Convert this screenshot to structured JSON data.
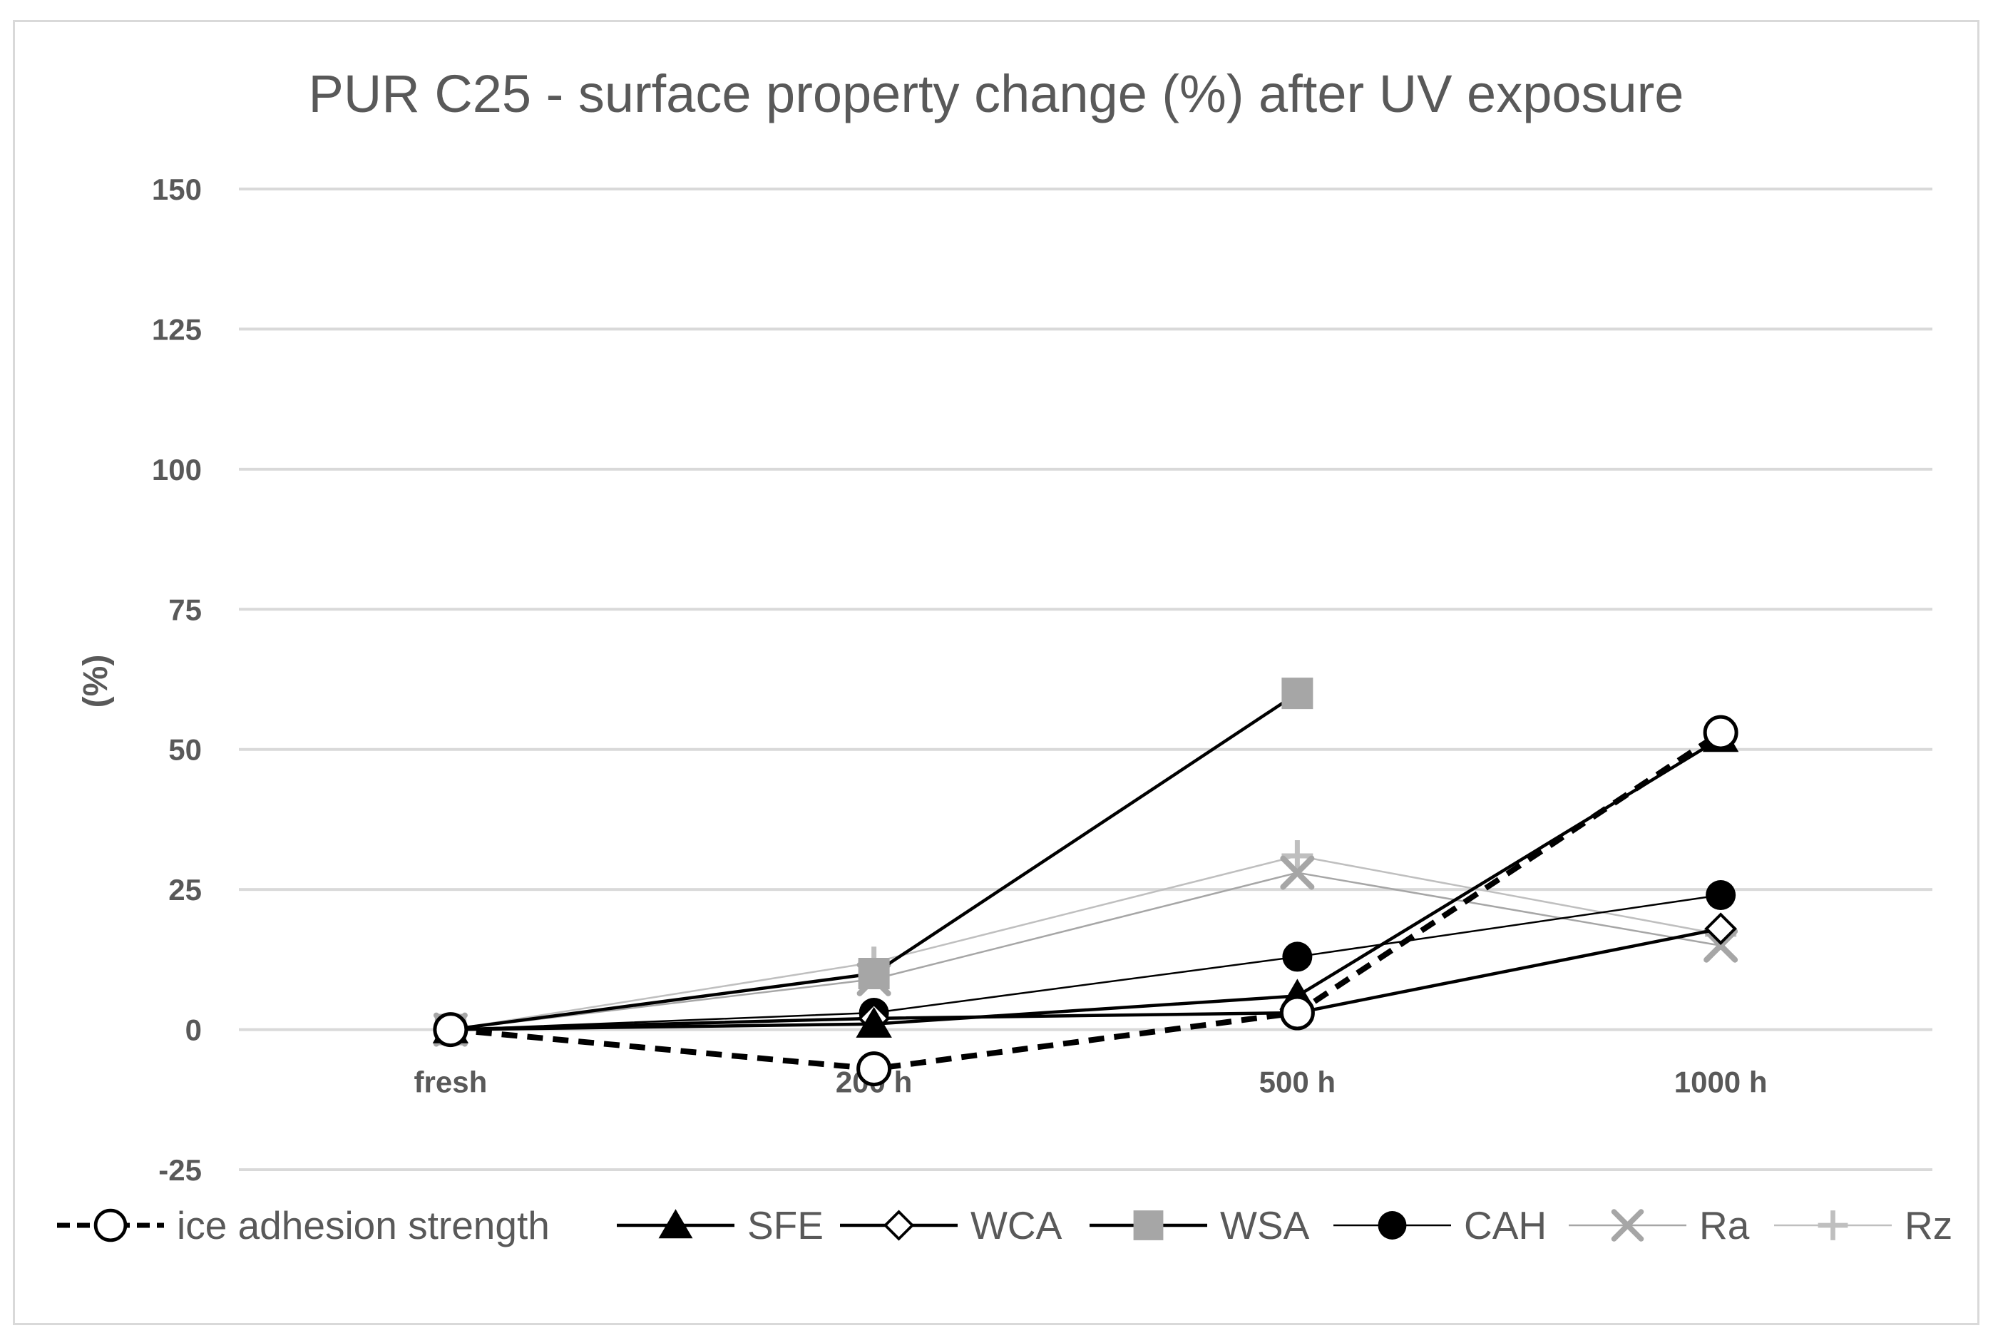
{
  "chart_data": {
    "type": "line",
    "title": "PUR C25 - surface property change (%) after UV exposure",
    "xlabel": "",
    "ylabel": "(%)",
    "categories": [
      "fresh",
      "200 h",
      "500 h",
      "1000 h"
    ],
    "ylim": [
      -25,
      150
    ],
    "yticks": [
      -25,
      0,
      25,
      50,
      75,
      100,
      125,
      150
    ],
    "grid": true,
    "legend_position": "bottom",
    "series": [
      {
        "name": "ice adhesion strength",
        "values": [
          0,
          -7,
          3,
          53
        ],
        "color": "#000000",
        "dash": "dashed",
        "marker": "open-circle",
        "line_weight": "thick"
      },
      {
        "name": "SFE",
        "values": [
          0,
          1,
          6,
          52
        ],
        "color": "#000000",
        "dash": "solid",
        "marker": "filled-triangle",
        "line_weight": "medium"
      },
      {
        "name": "WCA",
        "values": [
          0,
          2,
          3,
          18
        ],
        "color": "#000000",
        "dash": "solid",
        "marker": "open-diamond",
        "line_weight": "medium"
      },
      {
        "name": "WSA",
        "values": [
          0,
          10,
          60,
          null
        ],
        "color": "#a6a6a6",
        "line_color": "#000000",
        "dash": "solid",
        "marker": "filled-square",
        "line_weight": "medium"
      },
      {
        "name": "CAH",
        "values": [
          0,
          3,
          13,
          24
        ],
        "color": "#000000",
        "dash": "solid",
        "marker": "filled-circle",
        "line_weight": "thin"
      },
      {
        "name": "Ra",
        "values": [
          0,
          9,
          28,
          15
        ],
        "color": "#a6a6a6",
        "dash": "solid",
        "marker": "x",
        "line_weight": "thin"
      },
      {
        "name": "Rz",
        "values": [
          0,
          12,
          31,
          17
        ],
        "color": "#bfbfbf",
        "dash": "solid",
        "marker": "plus",
        "line_weight": "thin"
      }
    ]
  }
}
